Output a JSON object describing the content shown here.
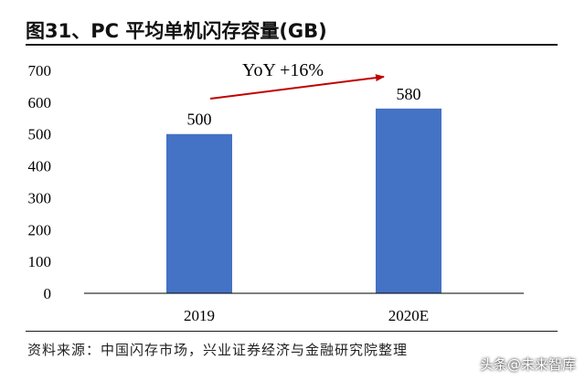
{
  "title": "图31、PC 平均单机闪存容量(GB)",
  "source": "资料来源：中国闪存市场，兴业证券经济与金融研究院整理",
  "watermark": "头条@未来智库",
  "colors": {
    "bar": "#4472C4",
    "arrow": "#C00000",
    "axis": "#000000"
  },
  "chart_data": {
    "type": "bar",
    "title": "图31、PC 平均单机闪存容量(GB)",
    "categories": [
      "2019",
      "2020E"
    ],
    "values": [
      500,
      580
    ],
    "data_labels": [
      "500",
      "580"
    ],
    "yticks": [
      "0",
      "100",
      "200",
      "300",
      "400",
      "500",
      "600",
      "700"
    ],
    "ylim": [
      0,
      700
    ],
    "xlabel": "",
    "ylabel": "",
    "grid": false,
    "annotation": "YoY +16%"
  }
}
